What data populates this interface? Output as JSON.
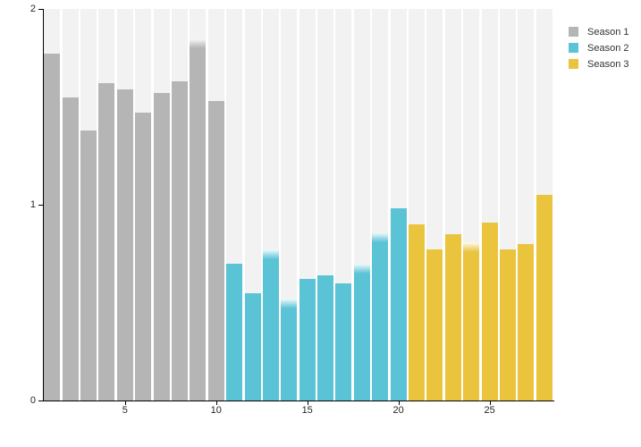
{
  "chart_data": {
    "type": "bar",
    "title": "",
    "xlabel": "",
    "ylabel": "",
    "x": [
      1,
      2,
      3,
      4,
      5,
      6,
      7,
      8,
      9,
      10,
      11,
      12,
      13,
      14,
      15,
      16,
      17,
      18,
      19,
      20,
      21,
      22,
      23,
      24,
      25,
      26,
      27,
      28
    ],
    "series": [
      {
        "name": "Season 1",
        "color": "#b5b5b5",
        "x_range": [
          1,
          10
        ],
        "values": [
          1.77,
          1.55,
          1.38,
          1.62,
          1.59,
          1.47,
          1.57,
          1.63,
          1.85,
          1.53
        ]
      },
      {
        "name": "Season 2",
        "color": "#5bc3d6",
        "x_range": [
          11,
          20
        ],
        "values": [
          0.7,
          0.55,
          0.77,
          0.52,
          0.62,
          0.64,
          0.6,
          0.7,
          0.86,
          0.98
        ]
      },
      {
        "name": "Season 3",
        "color": "#eac43d",
        "x_range": [
          21,
          28
        ],
        "values": [
          0.9,
          0.77,
          0.85,
          0.81,
          0.91,
          0.77,
          0.8,
          1.05
        ]
      }
    ],
    "ylim": [
      0,
      2
    ],
    "yticks": [
      "0",
      "1",
      "2"
    ],
    "ytick_values": [
      0,
      1,
      2
    ],
    "xticks": [
      "5",
      "10",
      "15",
      "20",
      "25"
    ],
    "xtick_values": [
      5,
      10,
      15,
      20,
      25
    ],
    "legend_position": "top-right",
    "grid": false,
    "plot_background": "striped",
    "stripe_color": "#f2f2f2",
    "axis_color": "#000000",
    "soft_top_bars": [
      9,
      13,
      14,
      18,
      19,
      24
    ]
  }
}
